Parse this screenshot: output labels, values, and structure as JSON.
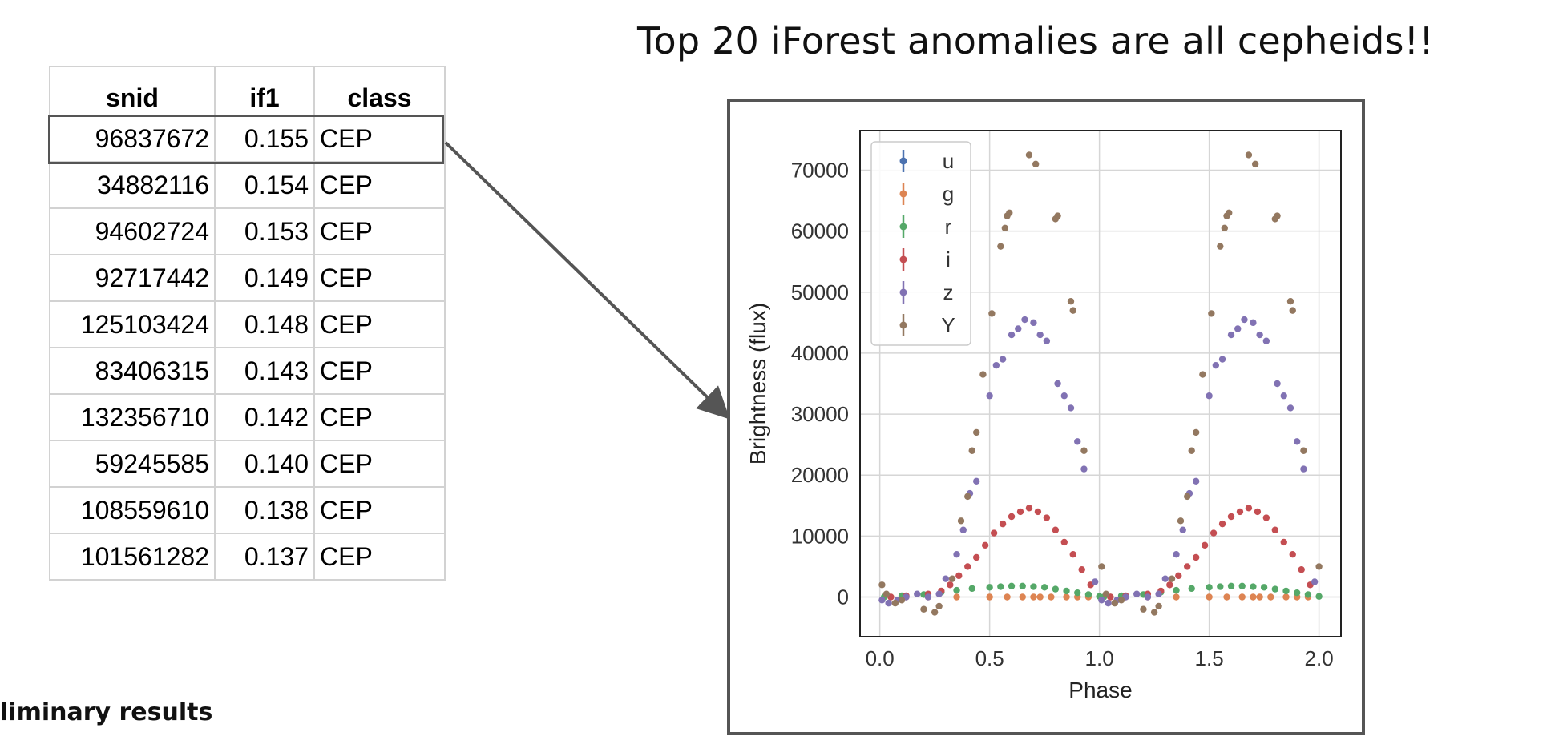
{
  "slide": {
    "title": "Top 20 iForest anomalies are all cepheids!!",
    "footer": "liminary results"
  },
  "table": {
    "columns": [
      "snid",
      "if1",
      "class"
    ],
    "rows": [
      {
        "snid": "96837672",
        "if1": "0.155",
        "class": "CEP",
        "highlighted": true
      },
      {
        "snid": "34882116",
        "if1": "0.154",
        "class": "CEP"
      },
      {
        "snid": "94602724",
        "if1": "0.153",
        "class": "CEP"
      },
      {
        "snid": "92717442",
        "if1": "0.149",
        "class": "CEP"
      },
      {
        "snid": "125103424",
        "if1": "0.148",
        "class": "CEP"
      },
      {
        "snid": "83406315",
        "if1": "0.143",
        "class": "CEP"
      },
      {
        "snid": "132356710",
        "if1": "0.142",
        "class": "CEP"
      },
      {
        "snid": "59245585",
        "if1": "0.140",
        "class": "CEP"
      },
      {
        "snid": "108559610",
        "if1": "0.138",
        "class": "CEP"
      },
      {
        "snid": "101561282",
        "if1": "0.137",
        "class": "CEP"
      }
    ]
  },
  "chart_data": {
    "type": "scatter",
    "xlabel": "Phase",
    "ylabel": "Brightness (flux)",
    "xlim": [
      -0.09,
      2.1
    ],
    "ylim": [
      -6500,
      76500
    ],
    "xticks": [
      "0.0",
      "0.5",
      "1.0",
      "1.5",
      "2.0"
    ],
    "xtick_values": [
      0,
      0.5,
      1.0,
      1.5,
      2.0
    ],
    "yticks": [
      "0",
      "10000",
      "20000",
      "30000",
      "40000",
      "50000",
      "60000",
      "70000"
    ],
    "ytick_values": [
      0,
      10000,
      20000,
      30000,
      40000,
      50000,
      60000,
      70000
    ],
    "grid": true,
    "legend_position": "top-left",
    "series": [
      {
        "name": "u",
        "color": "#4c72b0",
        "x": [],
        "y": []
      },
      {
        "name": "g",
        "color": "#dd8452",
        "x": [
          0.05,
          0.12,
          0.22,
          0.35,
          0.5,
          0.58,
          0.65,
          0.7,
          0.73,
          0.78,
          0.85,
          0.9,
          0.95,
          1.05,
          1.12,
          1.22,
          1.35,
          1.5,
          1.58,
          1.65,
          1.7,
          1.73,
          1.78,
          1.85,
          1.9,
          1.95
        ],
        "y": [
          0,
          0,
          0,
          0,
          0,
          0,
          0,
          0,
          0,
          0,
          0,
          0,
          0,
          0,
          0,
          0,
          0,
          0,
          0,
          0,
          0,
          0,
          0,
          0,
          0,
          0
        ]
      },
      {
        "name": "r",
        "color": "#55a868",
        "x": [
          0.02,
          0.1,
          0.2,
          0.28,
          0.35,
          0.42,
          0.5,
          0.55,
          0.6,
          0.65,
          0.7,
          0.75,
          0.8,
          0.85,
          0.9,
          0.95,
          1.0,
          1.02,
          1.1,
          1.2,
          1.28,
          1.35,
          1.42,
          1.5,
          1.55,
          1.6,
          1.65,
          1.7,
          1.75,
          1.8,
          1.85,
          1.9,
          1.95,
          2.0
        ],
        "y": [
          0,
          200,
          400,
          800,
          1100,
          1400,
          1600,
          1700,
          1800,
          1800,
          1700,
          1600,
          1300,
          1000,
          700,
          400,
          100,
          0,
          200,
          400,
          800,
          1100,
          1400,
          1600,
          1700,
          1800,
          1800,
          1700,
          1600,
          1300,
          1000,
          700,
          400,
          100
        ]
      },
      {
        "name": "i",
        "color": "#c44e52",
        "x": [
          0.05,
          0.12,
          0.22,
          0.28,
          0.32,
          0.36,
          0.4,
          0.44,
          0.48,
          0.52,
          0.56,
          0.6,
          0.64,
          0.68,
          0.72,
          0.76,
          0.8,
          0.84,
          0.88,
          0.92,
          0.96,
          1.05,
          1.12,
          1.22,
          1.28,
          1.32,
          1.36,
          1.4,
          1.44,
          1.48,
          1.52,
          1.56,
          1.6,
          1.64,
          1.68,
          1.72,
          1.76,
          1.8,
          1.84,
          1.88,
          1.92,
          1.96
        ],
        "y": [
          0,
          200,
          500,
          1000,
          2000,
          3500,
          5000,
          6500,
          8500,
          10500,
          12000,
          13200,
          14000,
          14600,
          14000,
          13000,
          11000,
          9000,
          7000,
          4500,
          2000,
          0,
          200,
          500,
          1000,
          2000,
          3500,
          5000,
          6500,
          8500,
          10500,
          12000,
          13200,
          14000,
          14600,
          14000,
          13000,
          11000,
          9000,
          7000,
          4500,
          2000
        ]
      },
      {
        "name": "z",
        "color": "#8172b3",
        "x": [
          0.01,
          0.04,
          0.08,
          0.12,
          0.17,
          0.22,
          0.27,
          0.3,
          0.35,
          0.38,
          0.41,
          0.44,
          0.5,
          0.53,
          0.56,
          0.6,
          0.63,
          0.66,
          0.7,
          0.73,
          0.76,
          0.81,
          0.84,
          0.87,
          0.9,
          0.93,
          0.98,
          1.01,
          1.04,
          1.08,
          1.12,
          1.17,
          1.22,
          1.27,
          1.3,
          1.35,
          1.38,
          1.41,
          1.44,
          1.5,
          1.53,
          1.56,
          1.6,
          1.63,
          1.66,
          1.7,
          1.73,
          1.76,
          1.81,
          1.84,
          1.87,
          1.9,
          1.93,
          1.98
        ],
        "y": [
          -500,
          -1000,
          -500,
          0,
          500,
          0,
          500,
          3000,
          7000,
          11000,
          17000,
          19000,
          33000,
          38000,
          39000,
          43000,
          44000,
          45500,
          45000,
          43000,
          42000,
          35000,
          33000,
          31000,
          25500,
          21000,
          2500,
          -500,
          -1000,
          -500,
          0,
          500,
          0,
          500,
          3000,
          7000,
          11000,
          17000,
          19000,
          33000,
          38000,
          39000,
          43000,
          44000,
          45500,
          45000,
          43000,
          42000,
          35000,
          33000,
          31000,
          25500,
          21000,
          2500
        ]
      },
      {
        "name": "Y",
        "color": "#937860",
        "x": [
          0.01,
          0.03,
          0.07,
          0.1,
          0.2,
          0.25,
          0.27,
          0.33,
          0.37,
          0.4,
          0.42,
          0.44,
          0.47,
          0.51,
          0.55,
          0.57,
          0.58,
          0.59,
          0.68,
          0.71,
          0.8,
          0.81,
          0.87,
          0.88,
          0.93,
          1.01,
          1.03,
          1.07,
          1.1,
          1.2,
          1.25,
          1.27,
          1.33,
          1.37,
          1.4,
          1.42,
          1.44,
          1.47,
          1.51,
          1.55,
          1.57,
          1.58,
          1.59,
          1.68,
          1.71,
          1.8,
          1.81,
          1.87,
          1.88,
          1.93,
          2.0
        ],
        "y": [
          2000,
          500,
          -1000,
          -500,
          -2000,
          -2500,
          -1500,
          3000,
          12500,
          16500,
          24000,
          27000,
          36500,
          46500,
          57500,
          60500,
          62500,
          63000,
          72500,
          71000,
          62000,
          62500,
          48500,
          47000,
          24000,
          5000,
          500,
          -1000,
          -500,
          -2000,
          -2500,
          -1500,
          3000,
          12500,
          16500,
          24000,
          27000,
          36500,
          46500,
          57500,
          60500,
          62500,
          63000,
          72500,
          71000,
          62000,
          62500,
          48500,
          47000,
          24000,
          5000
        ]
      }
    ]
  }
}
